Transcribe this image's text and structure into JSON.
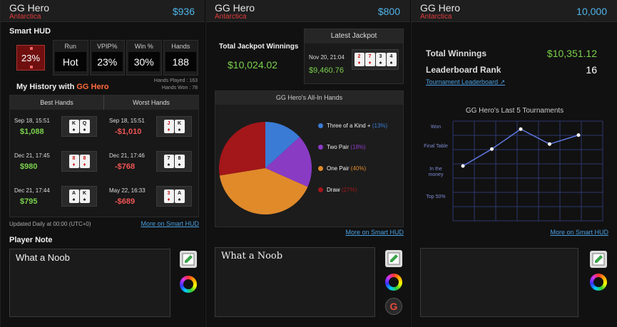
{
  "panel1": {
    "header": {
      "name": "GG Hero",
      "location": "Antarctica",
      "balance": "$936"
    },
    "smart_hud_title": "Smart HUD",
    "badge": "23%",
    "stats": [
      {
        "label": "Run",
        "value": "Hot"
      },
      {
        "label": "VPIP%",
        "value": "23%"
      },
      {
        "label": "Win %",
        "value": "30%"
      },
      {
        "label": "Hands",
        "value": "188"
      }
    ],
    "history_title": "My History with",
    "history_opponent": "GG Hero",
    "hands_played": "Hands Played : 163",
    "hands_won": "Hands Won : 78",
    "best_label": "Best Hands",
    "worst_label": "Worst Hands",
    "best": [
      {
        "date": "Sep 18, 15:51",
        "value": "$1,088",
        "cards": [
          [
            "K",
            "♠"
          ],
          [
            "Q",
            "♠"
          ]
        ]
      },
      {
        "date": "Dec 21, 17:45",
        "value": "$980",
        "cards": [
          [
            "8",
            "♦"
          ],
          [
            "8",
            "♦"
          ]
        ]
      },
      {
        "date": "Dec 21, 17:44",
        "value": "$795",
        "cards": [
          [
            "A",
            "♠"
          ],
          [
            "K",
            "♠"
          ]
        ]
      }
    ],
    "worst": [
      {
        "date": "Sep 18, 15:51",
        "value": "-$1,010",
        "cards": [
          [
            "J",
            "♦"
          ],
          [
            "K",
            "♠"
          ]
        ]
      },
      {
        "date": "Dec 21, 17:46",
        "value": "-$768",
        "cards": [
          [
            "7",
            "♠"
          ],
          [
            "8",
            "♠"
          ]
        ]
      },
      {
        "date": "May 22, 16:33",
        "value": "-$689",
        "cards": [
          [
            "3",
            "♦"
          ],
          [
            "A",
            "♠"
          ]
        ]
      }
    ],
    "updated": "Updated Daily at 00:00 (UTC+0)",
    "more_link": "More on Smart HUD",
    "note_title": "Player Note",
    "note_text": "What a Noob"
  },
  "panel2": {
    "header": {
      "name": "GG Hero",
      "location": "Antarctica",
      "balance": "$800"
    },
    "jackpot_title": "Total Jackpot Winnings",
    "jackpot_value": "$10,024.02",
    "latest_title": "Latest Jackpot",
    "latest_date": "Nov 20, 21:04",
    "latest_value": "$9,460.76",
    "latest_cards": [
      [
        "2",
        "♦"
      ],
      [
        "7",
        "♦"
      ],
      [
        "3",
        "♠"
      ],
      [
        "4",
        "♠"
      ]
    ],
    "allin_title": "GG Hero's All-In Hands",
    "more_link": "More on Smart HUD",
    "note_text": "What a Noob",
    "g_icon": "G"
  },
  "panel3": {
    "header": {
      "name": "GG Hero",
      "location": "Antarctica",
      "balance": "10,000"
    },
    "total_label": "Total Winnings",
    "total_value": "$10,351.12",
    "rank_label": "Leaderboard Rank",
    "rank_value": "16",
    "tourney_link": "Tournament Leaderboard",
    "line_title": "GG Hero's Last 5 Tournaments",
    "y_labels": [
      "Won",
      "Final Table",
      "In the money",
      "Top 50%"
    ],
    "more_link": "More on Smart HUD",
    "note_text": ""
  },
  "chart_data": [
    {
      "type": "pie",
      "title": "GG Hero's All-In Hands",
      "categories": [
        "Three of a Kind +",
        "Two Pair",
        "One Pair",
        "Draw"
      ],
      "values": [
        13,
        18,
        40,
        27
      ],
      "labels": [
        "(13%)",
        "(18%)",
        "(40%)",
        "(27%)"
      ],
      "colors": [
        "#3a7bd5",
        "#8a3bc4",
        "#e08a2a",
        "#a3161a"
      ],
      "legend": "right"
    },
    {
      "type": "line",
      "title": "GG Hero's Last 5 Tournaments",
      "x": [
        1,
        2,
        3,
        4,
        5
      ],
      "y": [
        0.55,
        0.72,
        0.92,
        0.77,
        0.86
      ],
      "y_categories": [
        "Top 50%",
        "In the money",
        "Final Table",
        "Won"
      ],
      "grid": true
    }
  ]
}
